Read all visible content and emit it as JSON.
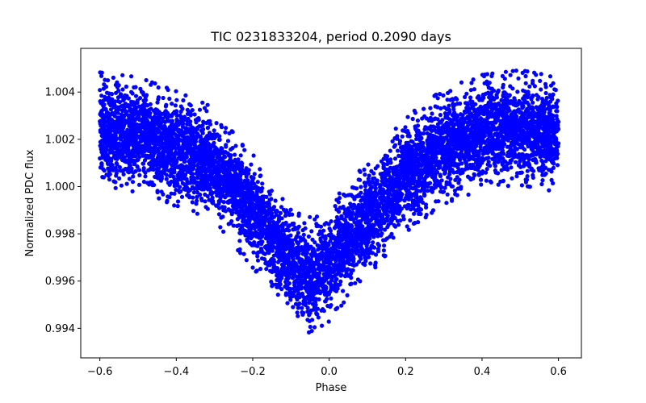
{
  "chart_data": {
    "type": "scatter",
    "title": "TIC 0231833204, period 0.2090 days",
    "xlabel": "Phase",
    "ylabel": "Normalized PDC flux",
    "xlim": [
      -0.65,
      0.66
    ],
    "ylim": [
      0.99275,
      1.00585
    ],
    "x_ticks": [
      -0.6,
      -0.4,
      -0.2,
      0.0,
      0.2,
      0.4,
      0.6
    ],
    "x_tick_labels": [
      "−0.6",
      "−0.4",
      "−0.2",
      "0.0",
      "0.2",
      "0.4",
      "0.6"
    ],
    "y_ticks": [
      0.994,
      0.996,
      0.998,
      1.0,
      1.002,
      1.004
    ],
    "y_tick_labels": [
      "0.994",
      "0.996",
      "0.998",
      "1.000",
      "1.002",
      "1.004"
    ],
    "grid": false,
    "marker_color": "#0000ff",
    "series": [
      {
        "name": "PDC flux",
        "phase_range": [
          -0.6,
          0.6
        ],
        "profile": [
          {
            "x": -0.6,
            "y": 1.0024
          },
          {
            "x": -0.5,
            "y": 1.0022
          },
          {
            "x": -0.4,
            "y": 1.0016
          },
          {
            "x": -0.3,
            "y": 1.0009
          },
          {
            "x": -0.2,
            "y": 0.999
          },
          {
            "x": -0.12,
            "y": 0.9972
          },
          {
            "x": -0.06,
            "y": 0.9962
          },
          {
            "x": 0.0,
            "y": 0.9967
          },
          {
            "x": 0.06,
            "y": 0.998
          },
          {
            "x": 0.12,
            "y": 0.999
          },
          {
            "x": 0.2,
            "y": 1.0005
          },
          {
            "x": 0.3,
            "y": 1.0017
          },
          {
            "x": 0.4,
            "y": 1.0023
          },
          {
            "x": 0.5,
            "y": 1.0025
          },
          {
            "x": 0.6,
            "y": 1.0022
          }
        ],
        "scatter_sigma": 0.0011
      }
    ]
  }
}
